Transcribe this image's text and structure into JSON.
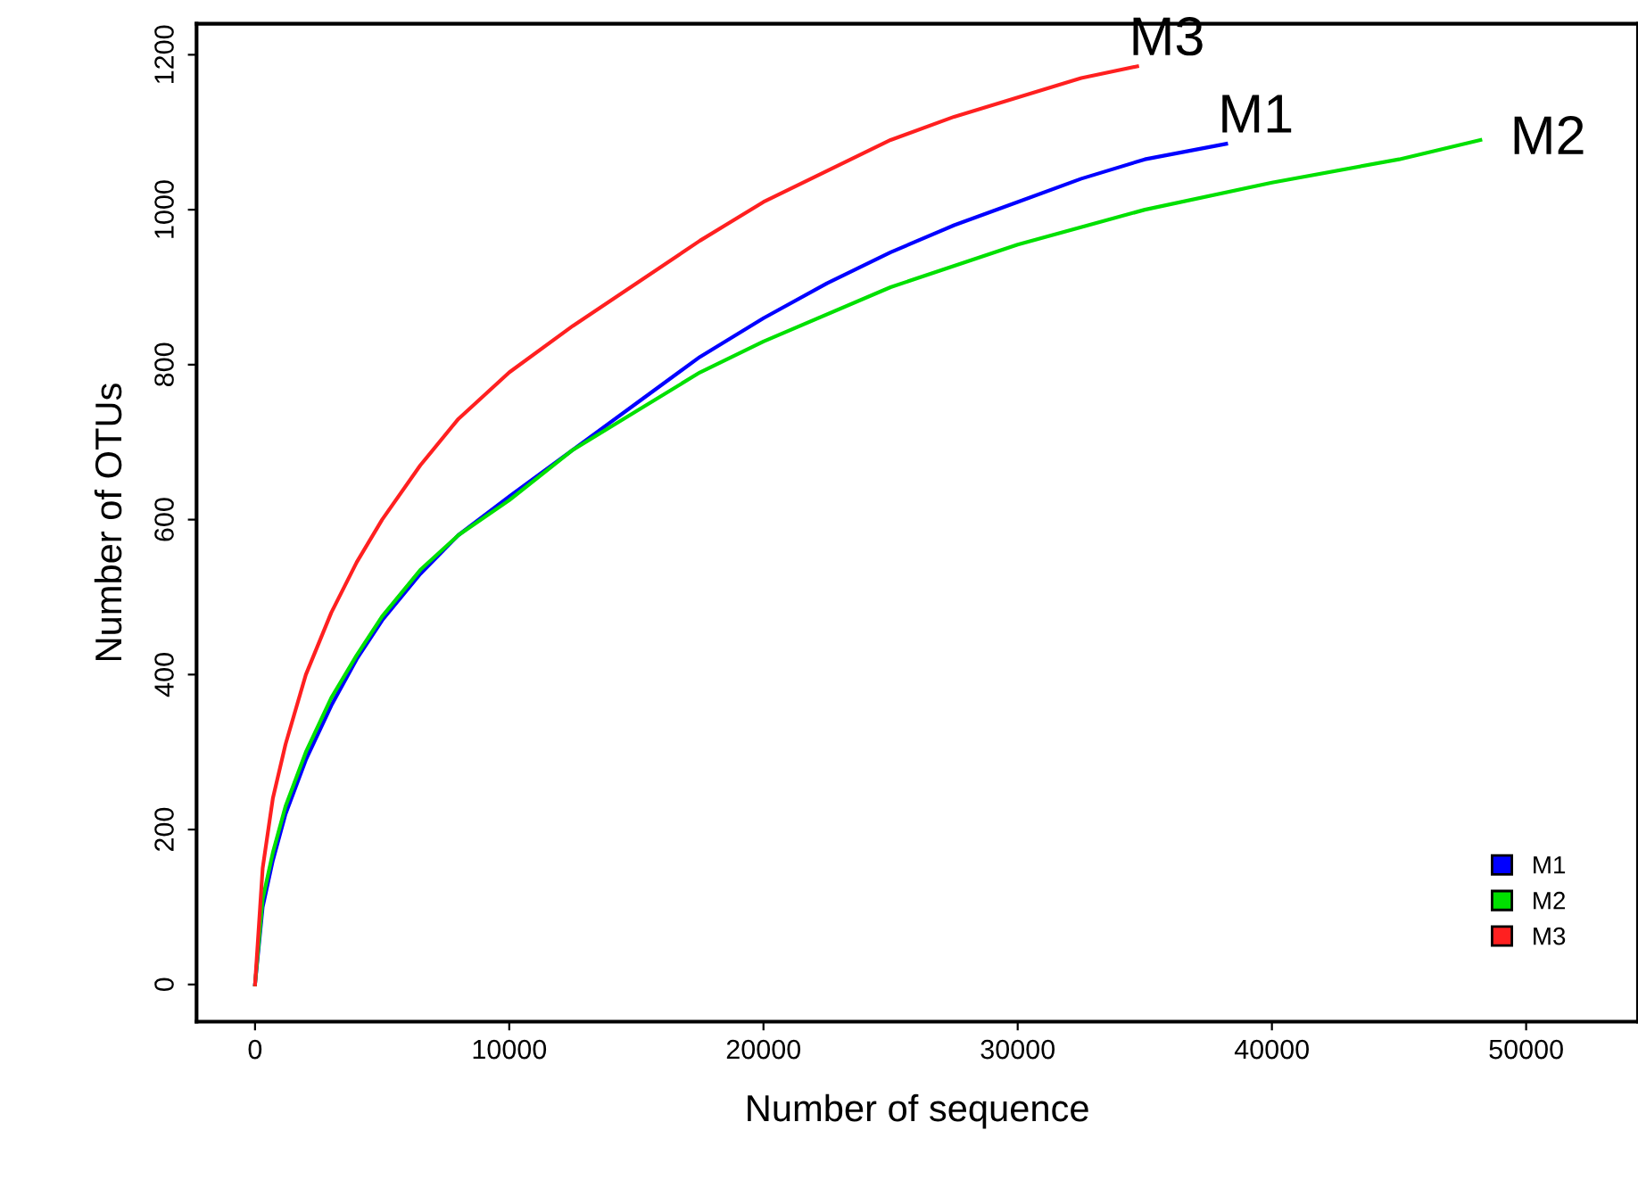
{
  "chart_data": {
    "type": "line",
    "xlabel": "Number of sequence",
    "ylabel": "Number of OTUs",
    "xlim": [
      -2300,
      54400
    ],
    "ylim": [
      -48,
      1240
    ],
    "xticks": [
      0,
      10000,
      20000,
      30000,
      40000,
      50000
    ],
    "yticks": [
      0,
      200,
      400,
      600,
      800,
      1000,
      1200
    ],
    "grid": false,
    "legend": "bottom right",
    "marker": "none",
    "line_style": "solid",
    "series": [
      {
        "name": "M1",
        "color": "#0000ff",
        "x": [
          0,
          300,
          700,
          1200,
          2000,
          3000,
          4000,
          5000,
          6500,
          8000,
          10000,
          12500,
          15000,
          17500,
          20000,
          22500,
          25000,
          27500,
          30000,
          32500,
          35000,
          38200
        ],
        "values": [
          0,
          100,
          160,
          220,
          290,
          360,
          420,
          470,
          530,
          580,
          630,
          690,
          750,
          810,
          860,
          905,
          945,
          980,
          1010,
          1040,
          1065,
          1085
        ]
      },
      {
        "name": "M2",
        "color": "#00e000",
        "x": [
          0,
          300,
          700,
          1200,
          2000,
          3000,
          4000,
          5000,
          6500,
          8000,
          10000,
          12500,
          15000,
          17500,
          20000,
          25000,
          30000,
          35000,
          40000,
          45000,
          48200
        ],
        "values": [
          0,
          110,
          170,
          230,
          300,
          370,
          425,
          475,
          535,
          580,
          625,
          690,
          740,
          790,
          830,
          900,
          955,
          1000,
          1035,
          1065,
          1090
        ]
      },
      {
        "name": "M3",
        "color": "#ff2020",
        "x": [
          0,
          300,
          700,
          1200,
          2000,
          3000,
          4000,
          5000,
          6500,
          8000,
          10000,
          12500,
          15000,
          17500,
          20000,
          22500,
          25000,
          27500,
          30000,
          32500,
          34700
        ],
        "values": [
          0,
          150,
          240,
          310,
          400,
          480,
          545,
          600,
          670,
          730,
          790,
          850,
          905,
          960,
          1010,
          1050,
          1090,
          1120,
          1145,
          1170,
          1185
        ]
      }
    ]
  }
}
